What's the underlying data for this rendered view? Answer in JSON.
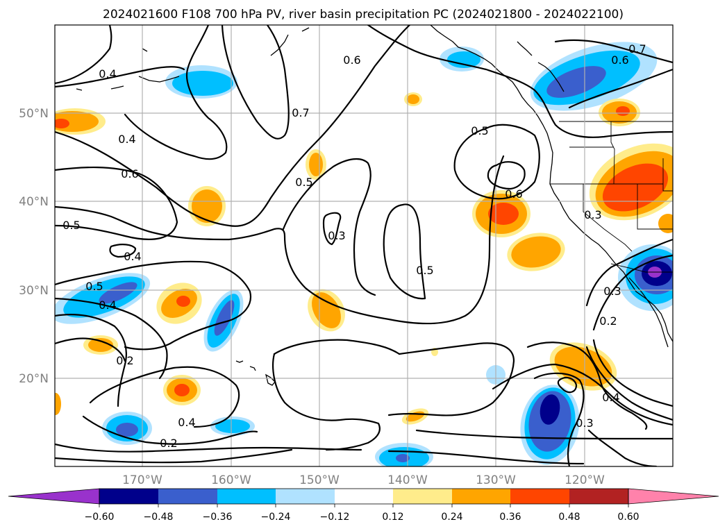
{
  "title": "2024021600 F108 700 hPa PV, river basin precipitation PC (2024021800 - 2024022100)",
  "lat_labels": [
    "50°N",
    "40°N",
    "30°N",
    "20°N"
  ],
  "lon_labels": [
    "170°W",
    "160°W",
    "150°W",
    "140°W",
    "130°W",
    "120°W"
  ],
  "colorbar": {
    "tick_labels": [
      "−0.60",
      "−0.48",
      "−0.36",
      "−0.24",
      "−0.12",
      "0.12",
      "0.24",
      "0.36",
      "0.48",
      "0.60"
    ],
    "colors": [
      "#9932cc",
      "#00008b",
      "#3a5fcd",
      "#00bfff",
      "#b0e2ff",
      "#ffffff",
      "#ffec8b",
      "#ffa500",
      "#ff4500",
      "#b22222",
      "#ff82ab"
    ]
  },
  "contour_labels": [
    {
      "text": "0.4"
    },
    {
      "text": "0.6"
    },
    {
      "text": "0.7"
    },
    {
      "text": "0.7"
    },
    {
      "text": "0.6"
    },
    {
      "text": "0.4"
    },
    {
      "text": "0.6"
    },
    {
      "text": "0.5"
    },
    {
      "text": "0.5"
    },
    {
      "text": "0.5"
    },
    {
      "text": "0.6"
    },
    {
      "text": "0.3"
    },
    {
      "text": "0.3"
    },
    {
      "text": "0.4"
    },
    {
      "text": "0.5"
    },
    {
      "text": "0.4"
    },
    {
      "text": "0.5"
    },
    {
      "text": "0.2"
    },
    {
      "text": "0.4"
    },
    {
      "text": "0.2"
    },
    {
      "text": "0.3"
    },
    {
      "text": "0.2"
    },
    {
      "text": "0.4"
    },
    {
      "text": "0.3"
    }
  ]
}
